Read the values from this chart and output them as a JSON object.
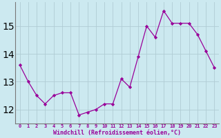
{
  "x": [
    0,
    1,
    2,
    3,
    4,
    5,
    6,
    7,
    8,
    9,
    10,
    11,
    12,
    13,
    14,
    15,
    16,
    17,
    18,
    19,
    20,
    21,
    22,
    23
  ],
  "y": [
    13.6,
    13.0,
    12.5,
    12.2,
    12.5,
    12.6,
    12.6,
    11.8,
    11.9,
    12.0,
    12.2,
    12.2,
    13.1,
    12.8,
    13.9,
    15.0,
    14.6,
    15.55,
    15.1,
    15.1,
    15.1,
    14.7,
    14.1,
    13.5
  ],
  "line_color": "#990099",
  "marker": "D",
  "marker_size": 2.2,
  "bg_color": "#cce9f0",
  "grid_color": "#b0ccd4",
  "xlabel": "Windchill (Refroidissement éolien,°C)",
  "xlabel_color": "#990099",
  "tick_color": "#990099",
  "ylim": [
    11.5,
    15.85
  ],
  "yticks": [
    12,
    13,
    14,
    15
  ],
  "xticks": [
    0,
    1,
    2,
    3,
    4,
    5,
    6,
    7,
    8,
    9,
    10,
    11,
    12,
    13,
    14,
    15,
    16,
    17,
    18,
    19,
    20,
    21,
    22,
    23
  ],
  "xtick_labels": [
    "0",
    "1",
    "2",
    "3",
    "4",
    "5",
    "6",
    "7",
    "8",
    "9",
    "10",
    "11",
    "12",
    "13",
    "14",
    "15",
    "16",
    "17",
    "18",
    "19",
    "20",
    "21",
    "22",
    "23"
  ]
}
